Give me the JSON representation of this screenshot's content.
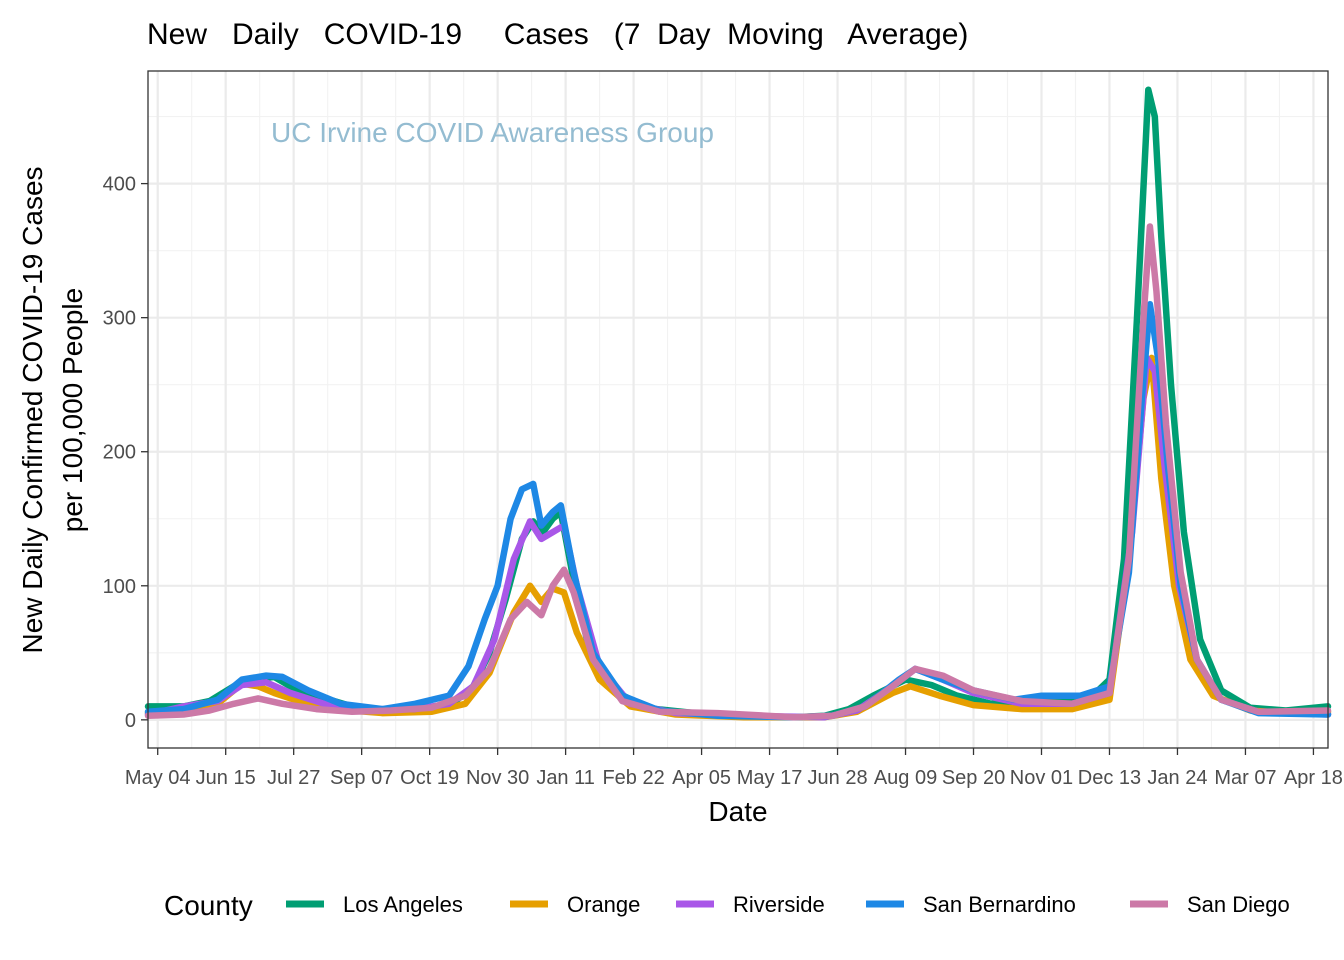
{
  "chart_data": {
    "type": "line",
    "title": "New   Daily   COVID-19     Cases   (7  Day  Moving   Average)",
    "xlabel": "Date",
    "ylabel_lines": [
      "New Daily Confirmed COVID-19 Cases",
      "per 100,000 People"
    ],
    "watermark": "UC Irvine COVID Awareness Group",
    "watermark_color": "#94BCD1",
    "legend_title": "County",
    "legend_position": "bottom",
    "grid": true,
    "x_ticks": [
      {
        "label": "May 04",
        "date": "2020-05-04"
      },
      {
        "label": "Jun 15",
        "date": "2020-06-15"
      },
      {
        "label": "Jul 27",
        "date": "2020-07-27"
      },
      {
        "label": "Sep 07",
        "date": "2020-09-07"
      },
      {
        "label": "Oct 19",
        "date": "2020-10-19"
      },
      {
        "label": "Nov 30",
        "date": "2020-11-30"
      },
      {
        "label": "Jan 11",
        "date": "2021-01-11"
      },
      {
        "label": "Feb 22",
        "date": "2021-02-22"
      },
      {
        "label": "Apr 05",
        "date": "2021-04-05"
      },
      {
        "label": "May 17",
        "date": "2021-05-17"
      },
      {
        "label": "Jun 28",
        "date": "2021-06-28"
      },
      {
        "label": "Aug 09",
        "date": "2021-08-09"
      },
      {
        "label": "Sep 20",
        "date": "2021-09-20"
      },
      {
        "label": "Nov 01",
        "date": "2021-11-01"
      },
      {
        "label": "Dec 13",
        "date": "2021-12-13"
      },
      {
        "label": "Jan 24",
        "date": "2022-01-24"
      },
      {
        "label": "Mar 07",
        "date": "2022-03-07"
      },
      {
        "label": "Apr 18",
        "date": "2022-04-18"
      }
    ],
    "y_ticks": [
      0,
      100,
      200,
      300,
      400
    ],
    "xlim": [
      "2020-04-28",
      "2022-04-27"
    ],
    "ylim": [
      -21,
      484
    ],
    "series": [
      {
        "name": "Los Angeles",
        "color": "#009E73",
        "points": [
          [
            "2020-04-28",
            10
          ],
          [
            "2020-05-20",
            10
          ],
          [
            "2020-06-05",
            14
          ],
          [
            "2020-06-20",
            25
          ],
          [
            "2020-07-01",
            30
          ],
          [
            "2020-07-15",
            32
          ],
          [
            "2020-07-25",
            25
          ],
          [
            "2020-08-10",
            18
          ],
          [
            "2020-09-01",
            10
          ],
          [
            "2020-09-20",
            7
          ],
          [
            "2020-10-10",
            8
          ],
          [
            "2020-10-31",
            10
          ],
          [
            "2020-11-15",
            25
          ],
          [
            "2020-11-25",
            50
          ],
          [
            "2020-12-05",
            90
          ],
          [
            "2020-12-15",
            135
          ],
          [
            "2020-12-22",
            148
          ],
          [
            "2020-12-28",
            140
          ],
          [
            "2021-01-03",
            150
          ],
          [
            "2021-01-08",
            155
          ],
          [
            "2021-01-15",
            110
          ],
          [
            "2021-01-25",
            55
          ],
          [
            "2021-02-10",
            22
          ],
          [
            "2021-03-01",
            9
          ],
          [
            "2021-04-01",
            5
          ],
          [
            "2021-05-01",
            3
          ],
          [
            "2021-06-01",
            2
          ],
          [
            "2021-06-20",
            3
          ],
          [
            "2021-07-05",
            8
          ],
          [
            "2021-07-20",
            18
          ],
          [
            "2021-08-09",
            30
          ],
          [
            "2021-08-25",
            26
          ],
          [
            "2021-09-10",
            18
          ],
          [
            "2021-10-01",
            12
          ],
          [
            "2021-11-01",
            13
          ],
          [
            "2021-11-30",
            15
          ],
          [
            "2021-12-13",
            30
          ],
          [
            "2021-12-22",
            120
          ],
          [
            "2021-12-30",
            300
          ],
          [
            "2022-01-06",
            470
          ],
          [
            "2022-01-10",
            450
          ],
          [
            "2022-01-14",
            360
          ],
          [
            "2022-01-20",
            250
          ],
          [
            "2022-01-28",
            140
          ],
          [
            "2022-02-07",
            60
          ],
          [
            "2022-02-20",
            22
          ],
          [
            "2022-03-10",
            9
          ],
          [
            "2022-04-01",
            7
          ],
          [
            "2022-04-27",
            10
          ]
        ]
      },
      {
        "name": "Orange",
        "color": "#E69F00",
        "points": [
          [
            "2020-04-28",
            5
          ],
          [
            "2020-05-20",
            6
          ],
          [
            "2020-06-10",
            12
          ],
          [
            "2020-06-25",
            27
          ],
          [
            "2020-07-05",
            25
          ],
          [
            "2020-07-15",
            20
          ],
          [
            "2020-07-30",
            14
          ],
          [
            "2020-08-20",
            8
          ],
          [
            "2020-09-20",
            5
          ],
          [
            "2020-10-20",
            6
          ],
          [
            "2020-11-10",
            12
          ],
          [
            "2020-11-25",
            35
          ],
          [
            "2020-12-10",
            80
          ],
          [
            "2020-12-20",
            100
          ],
          [
            "2020-12-27",
            88
          ],
          [
            "2021-01-03",
            98
          ],
          [
            "2021-01-10",
            95
          ],
          [
            "2021-01-18",
            65
          ],
          [
            "2021-02-01",
            30
          ],
          [
            "2021-02-20",
            10
          ],
          [
            "2021-03-20",
            4
          ],
          [
            "2021-05-01",
            2
          ],
          [
            "2021-06-20",
            2
          ],
          [
            "2021-07-10",
            6
          ],
          [
            "2021-08-01",
            20
          ],
          [
            "2021-08-12",
            25
          ],
          [
            "2021-08-30",
            18
          ],
          [
            "2021-09-20",
            11
          ],
          [
            "2021-10-20",
            8
          ],
          [
            "2021-11-20",
            8
          ],
          [
            "2021-12-13",
            15
          ],
          [
            "2021-12-25",
            120
          ],
          [
            "2022-01-03",
            240
          ],
          [
            "2022-01-08",
            270
          ],
          [
            "2022-01-14",
            180
          ],
          [
            "2022-01-22",
            100
          ],
          [
            "2022-02-01",
            45
          ],
          [
            "2022-02-15",
            18
          ],
          [
            "2022-03-10",
            7
          ],
          [
            "2022-04-01",
            5
          ],
          [
            "2022-04-27",
            6
          ]
        ]
      },
      {
        "name": "Riverside",
        "color": "#A957E8",
        "points": [
          [
            "2020-04-28",
            4
          ],
          [
            "2020-05-20",
            10
          ],
          [
            "2020-06-10",
            14
          ],
          [
            "2020-06-25",
            26
          ],
          [
            "2020-07-10",
            28
          ],
          [
            "2020-07-25",
            20
          ],
          [
            "2020-08-15",
            12
          ],
          [
            "2020-09-10",
            8
          ],
          [
            "2020-10-10",
            8
          ],
          [
            "2020-10-31",
            12
          ],
          [
            "2020-11-15",
            25
          ],
          [
            "2020-11-28",
            60
          ],
          [
            "2020-12-10",
            120
          ],
          [
            "2020-12-20",
            148
          ],
          [
            "2020-12-27",
            135
          ],
          [
            "2021-01-03",
            140
          ],
          [
            "2021-01-10",
            145
          ],
          [
            "2021-01-18",
            100
          ],
          [
            "2021-02-01",
            40
          ],
          [
            "2021-02-20",
            12
          ],
          [
            "2021-03-20",
            5
          ],
          [
            "2021-05-01",
            3
          ],
          [
            "2021-06-20",
            2
          ],
          [
            "2021-07-10",
            7
          ],
          [
            "2021-08-01",
            25
          ],
          [
            "2021-08-15",
            38
          ],
          [
            "2021-09-01",
            30
          ],
          [
            "2021-09-20",
            20
          ],
          [
            "2021-10-20",
            12
          ],
          [
            "2021-11-20",
            12
          ],
          [
            "2021-12-13",
            20
          ],
          [
            "2021-12-27",
            140
          ],
          [
            "2022-01-05",
            270
          ],
          [
            "2022-01-10",
            260
          ],
          [
            "2022-01-16",
            190
          ],
          [
            "2022-01-25",
            100
          ],
          [
            "2022-02-05",
            45
          ],
          [
            "2022-02-20",
            15
          ],
          [
            "2022-03-15",
            6
          ],
          [
            "2022-04-27",
            4
          ]
        ]
      },
      {
        "name": "San Bernardino",
        "color": "#1E88E5",
        "points": [
          [
            "2020-04-28",
            6
          ],
          [
            "2020-05-20",
            8
          ],
          [
            "2020-06-10",
            15
          ],
          [
            "2020-06-25",
            30
          ],
          [
            "2020-07-10",
            33
          ],
          [
            "2020-07-20",
            32
          ],
          [
            "2020-08-05",
            22
          ],
          [
            "2020-08-25",
            12
          ],
          [
            "2020-09-20",
            8
          ],
          [
            "2020-10-10",
            12
          ],
          [
            "2020-10-31",
            18
          ],
          [
            "2020-11-12",
            40
          ],
          [
            "2020-11-22",
            75
          ],
          [
            "2020-11-30",
            100
          ],
          [
            "2020-12-08",
            150
          ],
          [
            "2020-12-15",
            172
          ],
          [
            "2020-12-22",
            176
          ],
          [
            "2020-12-27",
            145
          ],
          [
            "2021-01-03",
            155
          ],
          [
            "2021-01-08",
            160
          ],
          [
            "2021-01-16",
            110
          ],
          [
            "2021-01-28",
            50
          ],
          [
            "2021-02-15",
            18
          ],
          [
            "2021-03-10",
            7
          ],
          [
            "2021-04-15",
            3
          ],
          [
            "2021-06-01",
            2
          ],
          [
            "2021-06-25",
            3
          ],
          [
            "2021-07-15",
            10
          ],
          [
            "2021-08-05",
            30
          ],
          [
            "2021-08-15",
            38
          ],
          [
            "2021-09-01",
            30
          ],
          [
            "2021-09-20",
            22
          ],
          [
            "2021-10-15",
            15
          ],
          [
            "2021-11-01",
            18
          ],
          [
            "2021-11-25",
            18
          ],
          [
            "2021-12-13",
            25
          ],
          [
            "2021-12-25",
            110
          ],
          [
            "2022-01-02",
            240
          ],
          [
            "2022-01-07",
            310
          ],
          [
            "2022-01-12",
            270
          ],
          [
            "2022-01-18",
            190
          ],
          [
            "2022-01-26",
            100
          ],
          [
            "2022-02-05",
            45
          ],
          [
            "2022-02-20",
            15
          ],
          [
            "2022-03-15",
            5
          ],
          [
            "2022-04-27",
            4
          ]
        ]
      },
      {
        "name": "San Diego",
        "color": "#CC79A7",
        "points": [
          [
            "2020-04-28",
            3
          ],
          [
            "2020-05-20",
            4
          ],
          [
            "2020-06-05",
            7
          ],
          [
            "2020-06-20",
            12
          ],
          [
            "2020-07-05",
            16
          ],
          [
            "2020-07-20",
            12
          ],
          [
            "2020-08-10",
            8
          ],
          [
            "2020-09-01",
            6
          ],
          [
            "2020-09-25",
            7
          ],
          [
            "2020-10-20",
            9
          ],
          [
            "2020-11-10",
            18
          ],
          [
            "2020-11-25",
            38
          ],
          [
            "2020-12-08",
            75
          ],
          [
            "2020-12-18",
            88
          ],
          [
            "2020-12-27",
            78
          ],
          [
            "2021-01-03",
            100
          ],
          [
            "2021-01-10",
            112
          ],
          [
            "2021-01-16",
            95
          ],
          [
            "2021-01-28",
            45
          ],
          [
            "2021-02-15",
            14
          ],
          [
            "2021-03-10",
            6
          ],
          [
            "2021-04-15",
            5
          ],
          [
            "2021-06-01",
            2
          ],
          [
            "2021-06-25",
            3
          ],
          [
            "2021-07-15",
            10
          ],
          [
            "2021-08-01",
            25
          ],
          [
            "2021-08-15",
            38
          ],
          [
            "2021-09-01",
            33
          ],
          [
            "2021-09-20",
            22
          ],
          [
            "2021-10-20",
            14
          ],
          [
            "2021-11-20",
            12
          ],
          [
            "2021-12-13",
            20
          ],
          [
            "2021-12-25",
            120
          ],
          [
            "2022-01-03",
            300
          ],
          [
            "2022-01-07",
            368
          ],
          [
            "2022-01-11",
            320
          ],
          [
            "2022-01-17",
            220
          ],
          [
            "2022-01-26",
            110
          ],
          [
            "2022-02-05",
            45
          ],
          [
            "2022-02-20",
            15
          ],
          [
            "2022-03-15",
            6
          ],
          [
            "2022-04-27",
            7
          ]
        ]
      }
    ]
  }
}
